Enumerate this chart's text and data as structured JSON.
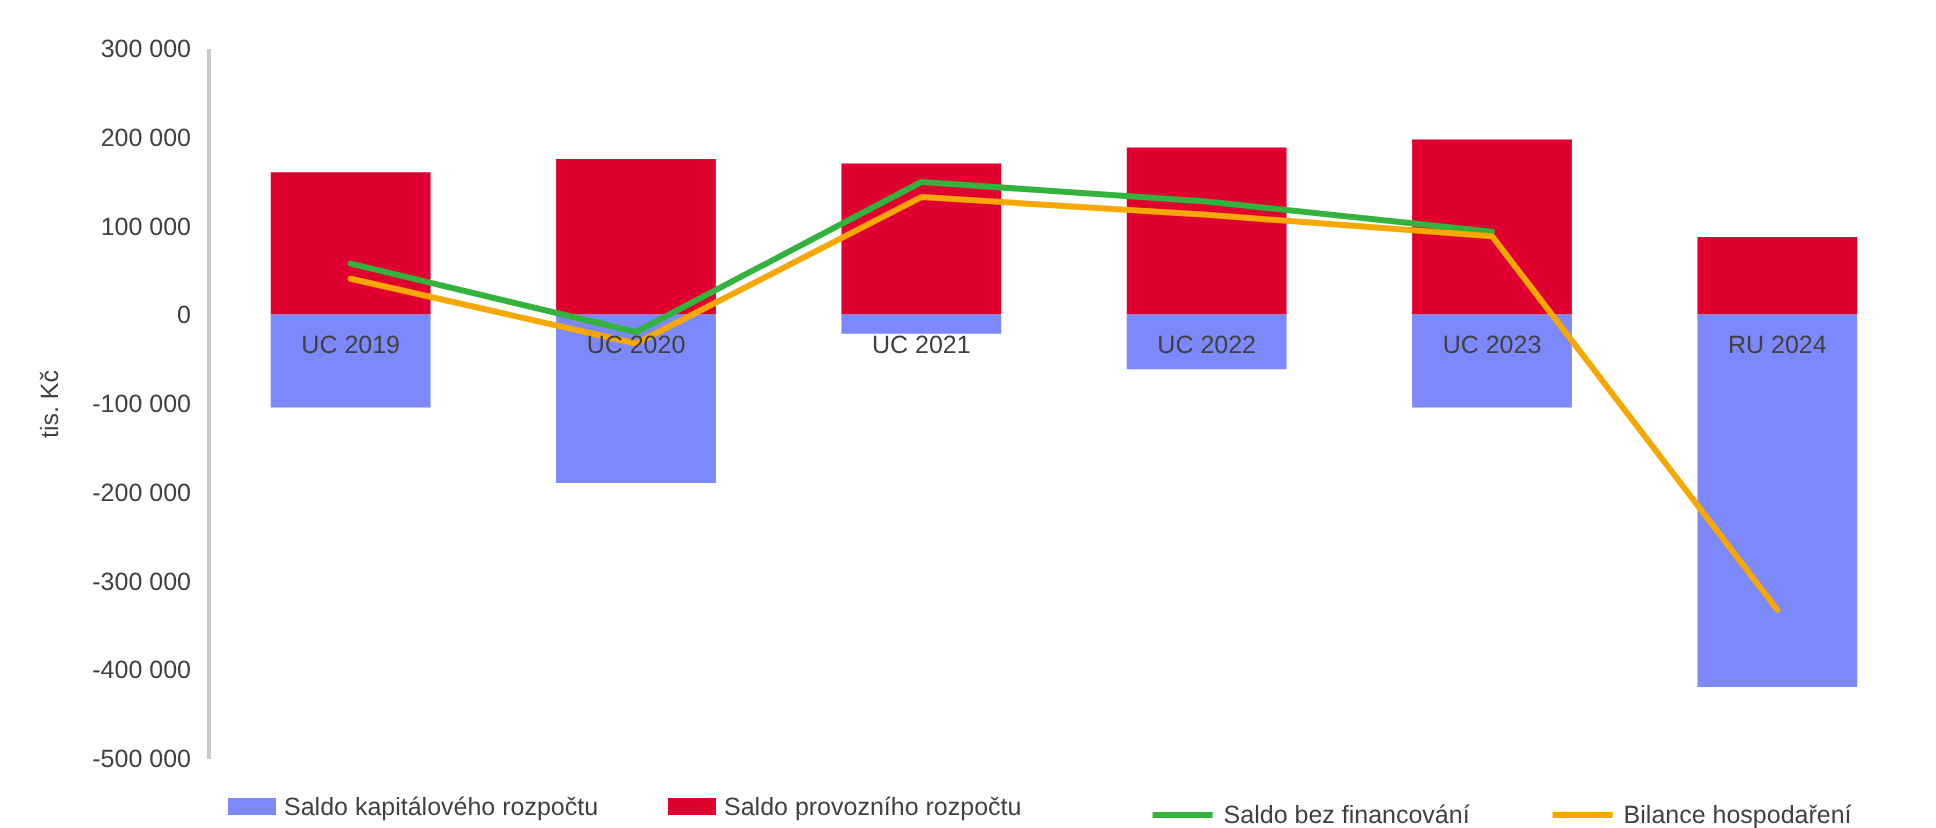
{
  "chart_data": {
    "type": "bar",
    "ylabel": "tis. Kč",
    "categories": [
      "UC 2019",
      "UC 2020",
      "UC 2021",
      "UC 2022",
      "UC 2023",
      "RU 2024"
    ],
    "series": [
      {
        "name": "Saldo kapitálového rozpočtu",
        "color": "#7d88fb",
        "values": [
          -105000,
          -190000,
          -22000,
          -62000,
          -105000,
          -420000
        ]
      },
      {
        "name": "Saldo provozního rozpočtu",
        "color": "#e00030",
        "values": [
          160000,
          175000,
          170000,
          188000,
          197000,
          87000
        ]
      },
      {
        "name": "Saldo bez financování",
        "type": "line",
        "color": "#33b23d",
        "values": [
          57000,
          -20000,
          149000,
          127000,
          93000,
          null
        ]
      },
      {
        "name": "Bilance hospodaření",
        "type": "line",
        "color": "#f7a800",
        "values": [
          40000,
          -33000,
          132000,
          112000,
          88000,
          -333000
        ]
      }
    ],
    "stacked": true,
    "ylim": [
      -500000,
      300000
    ],
    "yticks": [
      {
        "value": -500000,
        "label": "-500 000"
      },
      {
        "value": -400000,
        "label": "-400 000"
      },
      {
        "value": -300000,
        "label": "-300 000"
      },
      {
        "value": -200000,
        "label": "-200 000"
      },
      {
        "value": -100000,
        "label": "-100 000"
      },
      {
        "value": 0,
        "label": "0"
      },
      {
        "value": 100000,
        "label": "100 000"
      },
      {
        "value": 200000,
        "label": "200 000"
      },
      {
        "value": 300000,
        "label": "300 000"
      }
    ],
    "legend": "bottom"
  }
}
